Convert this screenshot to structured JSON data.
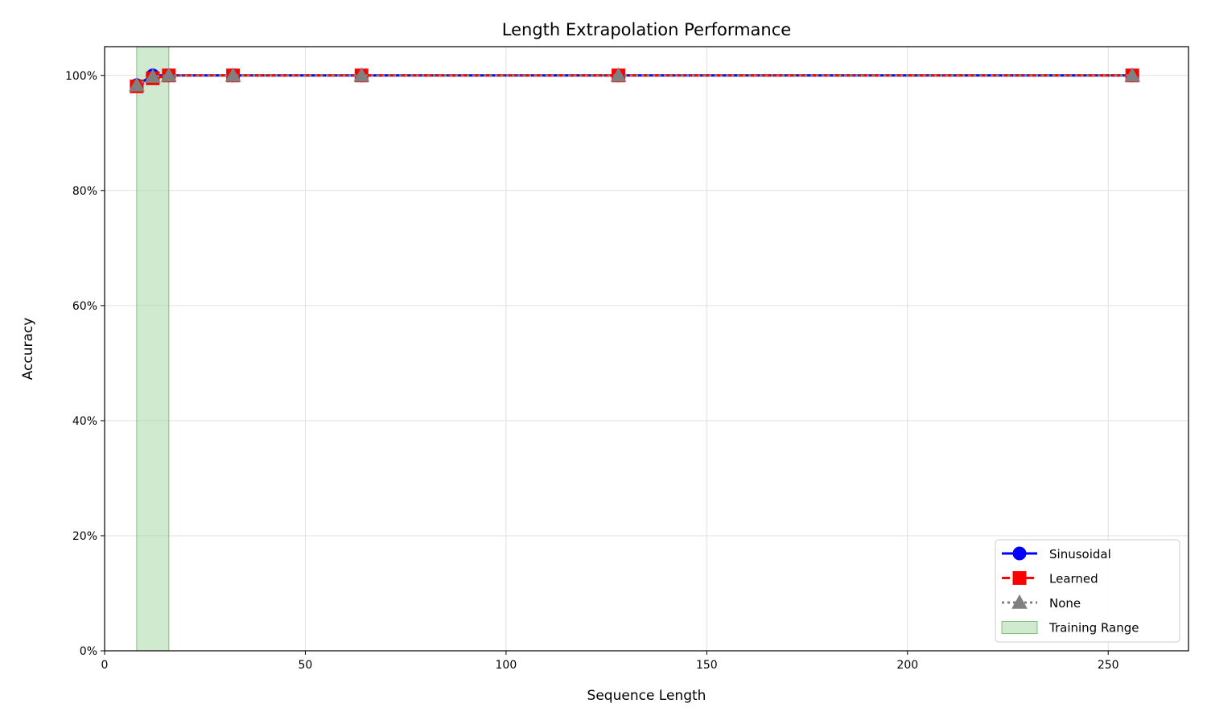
{
  "chart_data": {
    "type": "line",
    "title": "Length Extrapolation Performance",
    "xlabel": "Sequence Length",
    "ylabel": "Accuracy",
    "xlim": [
      0,
      270
    ],
    "ylim": [
      0,
      105
    ],
    "x_ticks": [
      0,
      50,
      100,
      150,
      200,
      250
    ],
    "y_ticks": [
      0,
      20,
      40,
      60,
      80,
      100
    ],
    "y_tick_labels": [
      "0%",
      "20%",
      "40%",
      "60%",
      "80%",
      "100%"
    ],
    "grid": true,
    "legend_position": "bottom-right",
    "x": [
      8,
      12,
      16,
      32,
      64,
      128,
      256
    ],
    "series": [
      {
        "name": "Sinusoidal",
        "color": "#0000ff",
        "marker": "circle",
        "linestyle": "solid",
        "values": [
          98.3,
          100,
          100,
          100,
          100,
          100,
          100
        ]
      },
      {
        "name": "Learned",
        "color": "#ff0000",
        "marker": "square",
        "linestyle": "dashed",
        "values": [
          98.1,
          99.5,
          100,
          100,
          100,
          100,
          100
        ]
      },
      {
        "name": "None",
        "color": "#808080",
        "marker": "triangle",
        "linestyle": "dotted",
        "values": [
          98.3,
          99.8,
          100,
          100,
          100,
          100,
          100
        ]
      }
    ],
    "shaded_region": {
      "name": "Training Range",
      "x_range": [
        8,
        16
      ],
      "color": "#a8d8a8"
    }
  }
}
